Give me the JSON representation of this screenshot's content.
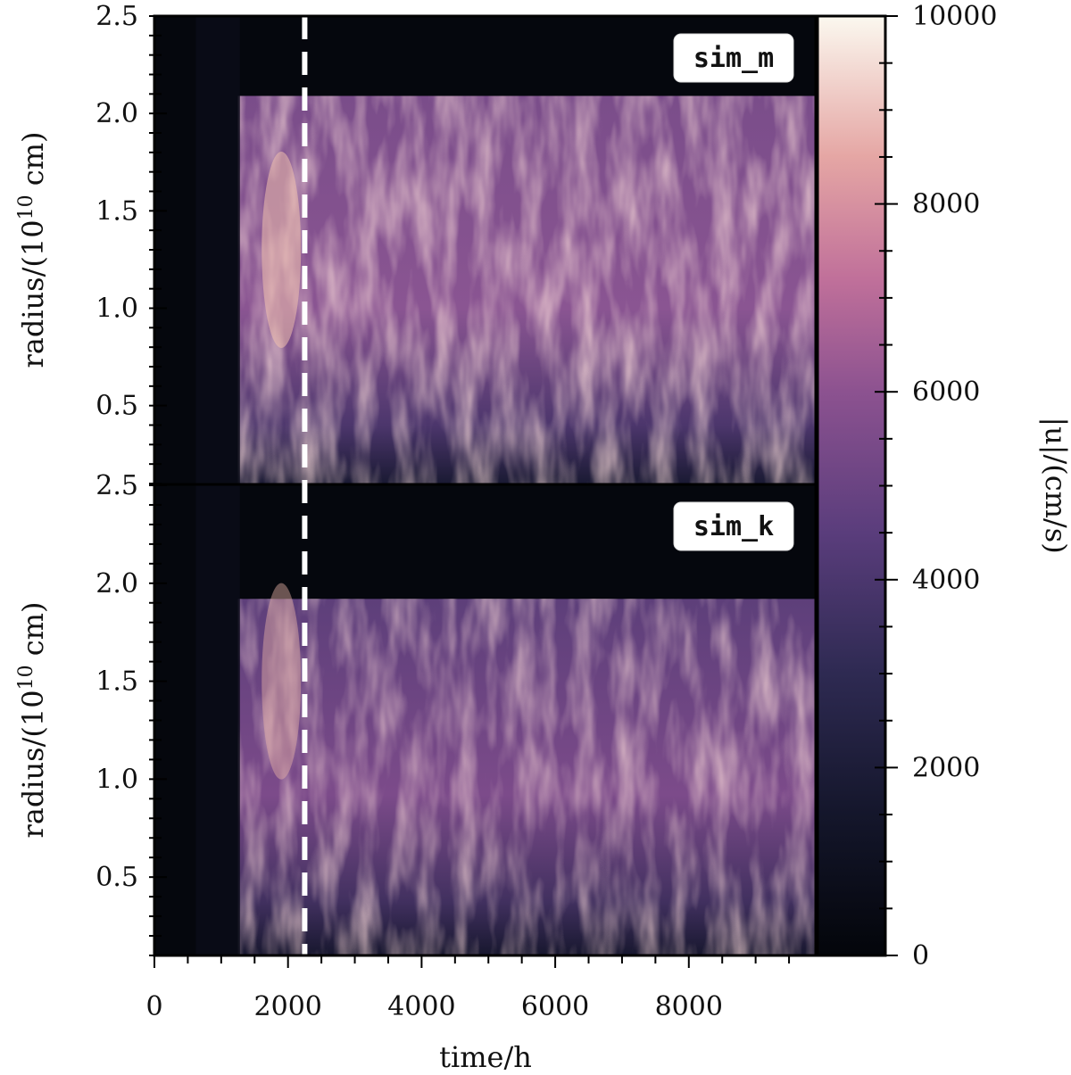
{
  "chart_data": {
    "type": "heatmap",
    "x_axis": {
      "label": "time/h",
      "range": [
        0,
        9900
      ],
      "ticks": [
        0,
        2000,
        4000,
        6000,
        8000
      ],
      "tick_labels": [
        "0",
        "2000",
        "4000",
        "6000",
        "8000"
      ]
    },
    "dashed_line_time": 2250,
    "panels": [
      {
        "name": "sim_m",
        "ylabel": "radius/(10^10 cm)",
        "ylabel_main": "radius/(10",
        "ylabel_exp": "10",
        "ylabel_tail": " cm)",
        "yrange": [
          0.1,
          2.5
        ],
        "yticks": [
          0.5,
          1.0,
          1.5,
          2.0,
          2.5
        ],
        "ytick_labels": [
          "0.5",
          "1.0",
          "1.5",
          "2.0",
          "2.5"
        ],
        "boundary_radius": 2.09
      },
      {
        "name": "sim_k",
        "ylabel": "radius/(10^10 cm)",
        "ylabel_main": "radius/(10",
        "ylabel_exp": "10",
        "ylabel_tail": " cm)",
        "yrange": [
          0.1,
          2.5
        ],
        "yticks": [
          0.5,
          1.0,
          1.5,
          2.0,
          2.5
        ],
        "ytick_labels": [
          "0.5",
          "1.0",
          "1.5",
          "2.0",
          "2.5"
        ],
        "boundary_radius": 1.92
      }
    ],
    "colorbar": {
      "label": "|u|/(cm/s)",
      "range": [
        0,
        10000
      ],
      "ticks": [
        0,
        2000,
        4000,
        6000,
        8000,
        10000
      ],
      "tick_labels": [
        "0",
        "2000",
        "4000",
        "6000",
        "8000",
        "10000"
      ],
      "colormap": [
        "#03050a",
        "#1a1a33",
        "#3a2d5c",
        "#6a4282",
        "#a05d96",
        "#d8899c",
        "#f0c4a8",
        "#fbf8ef"
      ]
    }
  }
}
